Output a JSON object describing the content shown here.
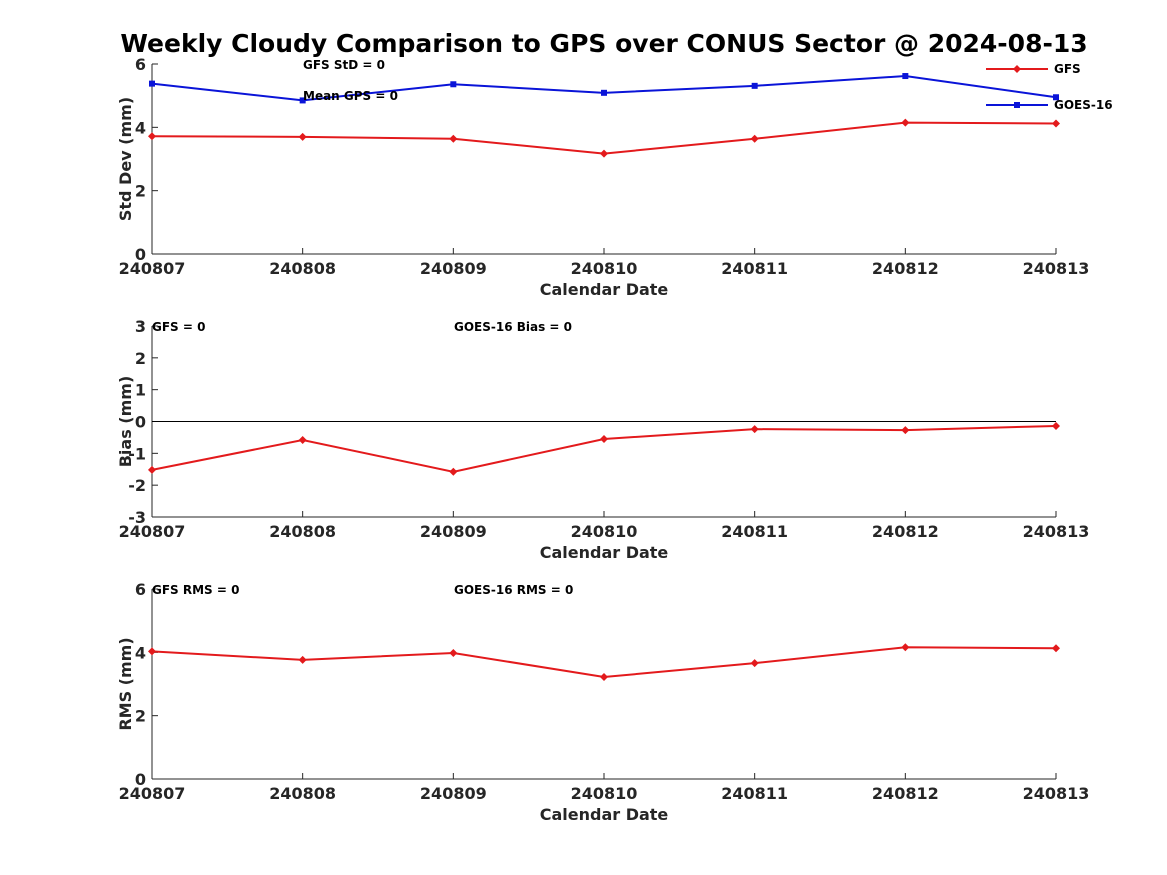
{
  "title": "Weekly Cloudy Comparison to GPS over CONUS Sector @ 2024-08-13",
  "colors": {
    "GFS": "#e31a1c",
    "GOES-16": "#0a14d8",
    "axis": "#262626",
    "zero_line": "#000000"
  },
  "chart_data": [
    {
      "type": "line",
      "id": "stddev",
      "categories": [
        "240807",
        "240808",
        "240809",
        "240810",
        "240811",
        "240812",
        "240813"
      ],
      "series": [
        {
          "name": "GFS",
          "marker": "diamond",
          "values": [
            3.72,
            3.7,
            3.64,
            3.17,
            3.64,
            4.15,
            4.12
          ]
        },
        {
          "name": "GOES-16",
          "marker": "square",
          "values": [
            5.38,
            4.85,
            5.36,
            5.09,
            5.31,
            5.62,
            4.95
          ]
        }
      ],
      "ylabel": "Std Dev (mm)",
      "xlabel": "Calendar Date",
      "ylim": [
        0,
        6
      ],
      "yticks": [
        0,
        2,
        4,
        6
      ],
      "legend": "top-right",
      "annotations": [
        "GFS StD = 0",
        "Mean GPS = 0"
      ]
    },
    {
      "type": "line",
      "id": "bias",
      "categories": [
        "240807",
        "240808",
        "240809",
        "240810",
        "240811",
        "240812",
        "240813"
      ],
      "series": [
        {
          "name": "GFS",
          "marker": "diamond",
          "values": [
            -1.52,
            -0.58,
            -1.58,
            -0.55,
            -0.24,
            -0.27,
            -0.14
          ]
        }
      ],
      "reference_line": 0,
      "ylabel": "Bias (mm)",
      "xlabel": "Calendar Date",
      "ylim": [
        -3,
        3
      ],
      "yticks": [
        -3,
        -2,
        -1,
        0,
        1,
        2,
        3
      ],
      "annotations": [
        "GFS = 0",
        "GOES-16 Bias  = 0"
      ]
    },
    {
      "type": "line",
      "id": "rms",
      "categories": [
        "240807",
        "240808",
        "240809",
        "240810",
        "240811",
        "240812",
        "240813"
      ],
      "series": [
        {
          "name": "GFS",
          "marker": "diamond",
          "values": [
            4.03,
            3.76,
            3.98,
            3.22,
            3.66,
            4.16,
            4.13
          ]
        }
      ],
      "ylabel": "RMS (mm)",
      "xlabel": "Calendar Date",
      "ylim": [
        0,
        6
      ],
      "yticks": [
        0,
        2,
        4,
        6
      ],
      "annotations": [
        "GFS RMS = 0",
        "GOES-16 RMS = 0"
      ]
    }
  ]
}
